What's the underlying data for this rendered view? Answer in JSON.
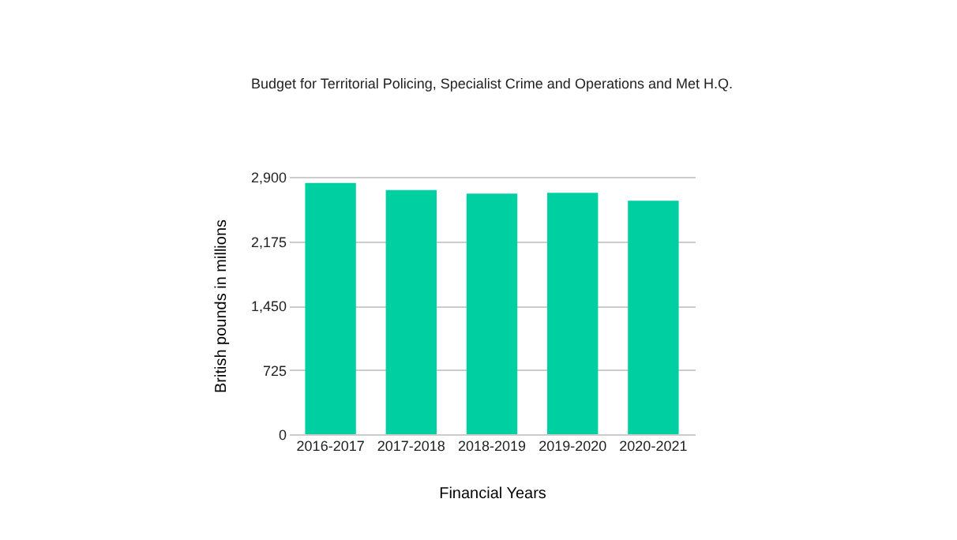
{
  "chart_data": {
    "type": "bar",
    "title": "Budget for Territorial Policing, Specialist Crime and Operations and Met H.Q.",
    "xlabel": "Financial Years",
    "ylabel": "British pounds in millions",
    "categories": [
      "2016-2017",
      "2017-2018",
      "2018-2019",
      "2019-2020",
      "2020-2021"
    ],
    "values": [
      2830,
      2750,
      2710,
      2720,
      2630
    ],
    "color": "#00cfa1",
    "ylim": [
      0,
      2900
    ],
    "yticks": [
      0,
      725,
      {
        "value": 1450,
        "label": "1,450"
      },
      {
        "value": 2175,
        "label": "2,175"
      },
      {
        "value": 2900,
        "label": "2,900"
      }
    ],
    "grid": true
  }
}
